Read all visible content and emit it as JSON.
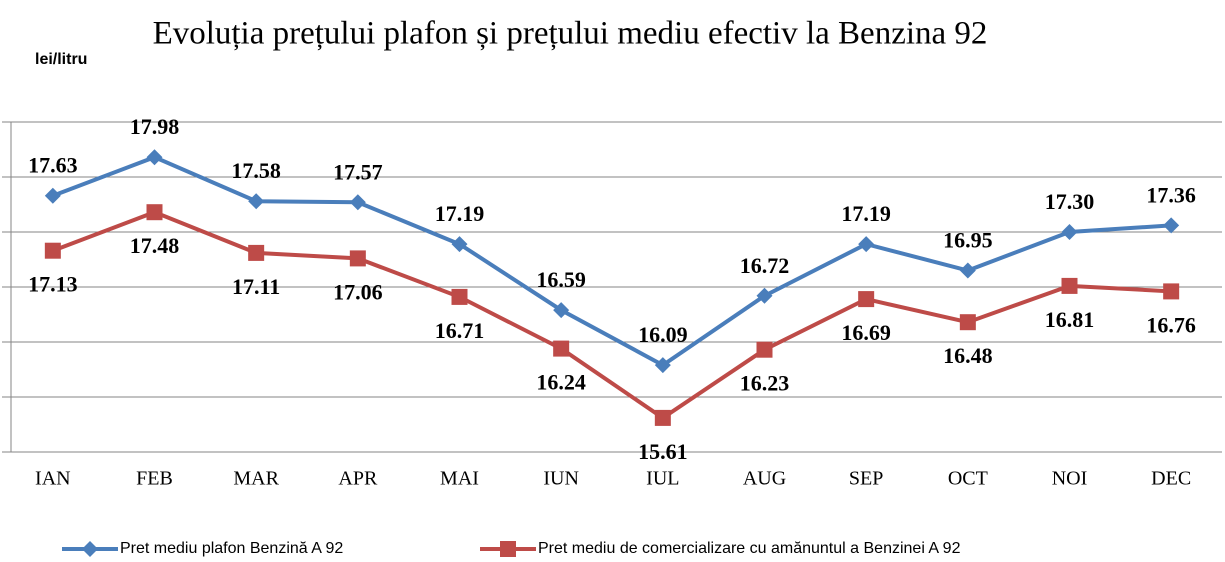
{
  "chart_data": {
    "type": "line",
    "title": "Evoluția prețului plafon și prețului mediu efectiv la Benzina 92",
    "y_label": "lei/litru",
    "categories": [
      "IAN",
      "FEB",
      "MAR",
      "APR",
      "MAI",
      "IUN",
      "IUL",
      "AUG",
      "SEP",
      "OCT",
      "NOI",
      "DEC"
    ],
    "series": [
      {
        "name": "Pret mediu plafon Benzină A 92",
        "color": "#4a7ebb",
        "marker": "diamond",
        "values": [
          17.63,
          17.98,
          17.58,
          17.57,
          17.19,
          16.59,
          16.09,
          16.72,
          17.19,
          16.95,
          17.3,
          17.36
        ],
        "value_labels": [
          "17.63",
          "17.98",
          "17.58",
          "17.57",
          "17.19",
          "16.59",
          "16.09",
          "16.72",
          "17.19",
          "16.95",
          "17.30",
          "17.36"
        ]
      },
      {
        "name": "Pret mediu de comercializare cu amănuntul a Benzinei A 92",
        "color": "#be4b48",
        "marker": "square",
        "values": [
          17.13,
          17.48,
          17.11,
          17.06,
          16.71,
          16.24,
          15.61,
          16.23,
          16.69,
          16.48,
          16.81,
          16.76
        ],
        "value_labels": [
          "17.13",
          "17.48",
          "17.11",
          "17.06",
          "16.71",
          "16.24",
          "15.61",
          "16.23",
          "16.69",
          "16.48",
          "16.81",
          "16.76"
        ]
      }
    ],
    "ylim": [
      15.3,
      18.3
    ],
    "yticks": [
      15.3,
      15.8,
      16.3,
      16.8,
      17.3,
      17.8,
      18.3
    ],
    "ytick_labels": false,
    "grid": true,
    "legend": "bottom"
  }
}
